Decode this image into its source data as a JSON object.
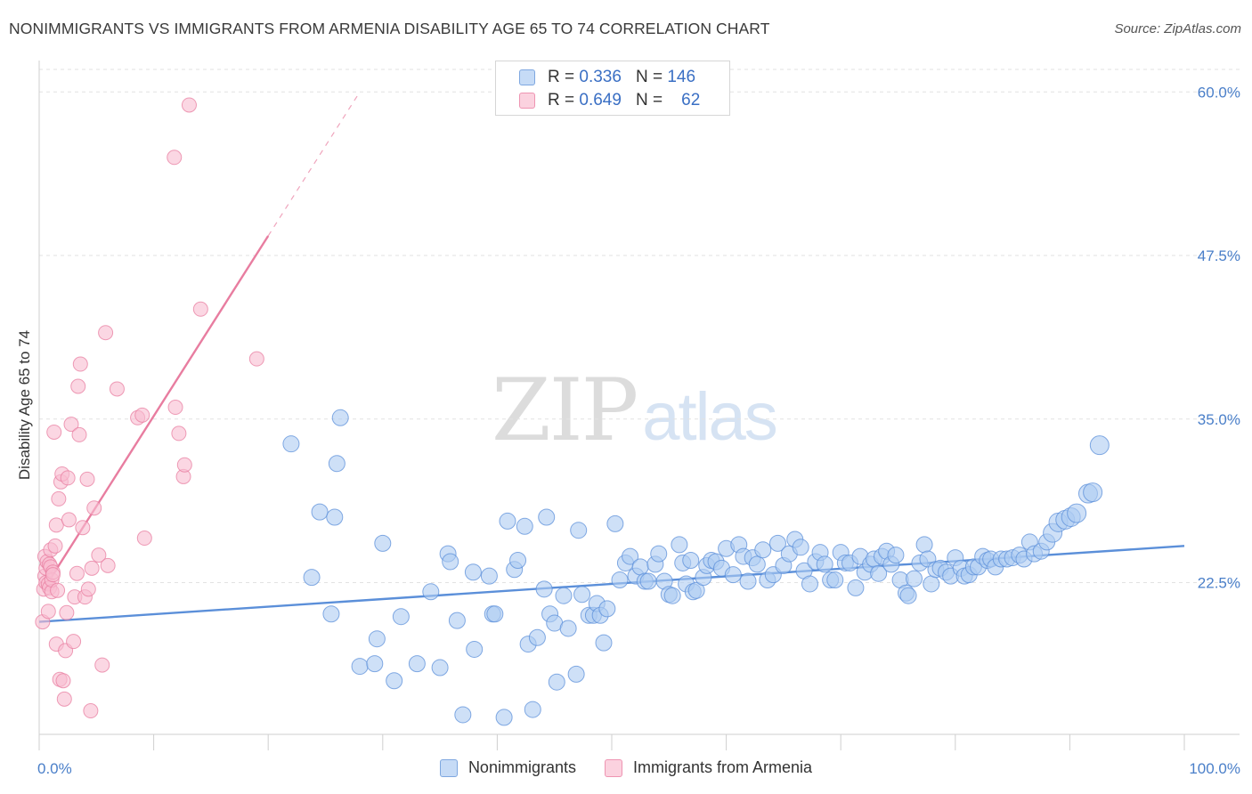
{
  "header": {
    "title": "NONIMMIGRANTS VS IMMIGRANTS FROM ARMENIA DISABILITY AGE 65 TO 74 CORRELATION CHART",
    "source": "Source: ZipAtlas.com"
  },
  "watermark": {
    "zip": "ZIP",
    "atlas": "atlas"
  },
  "legend_top": {
    "rows": [
      {
        "r_label": "R =",
        "r_value": "0.336",
        "n_label": "N =",
        "n_value": "146",
        "color": "#aecbf2"
      },
      {
        "r_label": "R =",
        "r_value": "0.649",
        "n_label": "N =",
        "n_value": "62",
        "color": "#f8bcd0"
      }
    ]
  },
  "legend_bottom": [
    {
      "label": "Nonimmigrants",
      "color": "#aecbf2"
    },
    {
      "label": "Immigrants from Armenia",
      "color": "#f8bcd0"
    }
  ],
  "chart_data": {
    "type": "scatter",
    "title": "NONIMMIGRANTS VS IMMIGRANTS FROM ARMENIA DISABILITY AGE 65 TO 74 CORRELATION CHART",
    "xlabel": "",
    "ylabel": "Disability Age 65 to 74",
    "xlim": [
      0,
      100
    ],
    "ylim": [
      10.9,
      62.4
    ],
    "y_ticks": [
      22.5,
      35.0,
      47.5,
      60.0
    ],
    "y_tick_labels": [
      "22.5%",
      "35.0%",
      "47.5%",
      "60.0%"
    ],
    "x_tick_labels": [
      "0.0%",
      "100.0%"
    ],
    "grid": true,
    "legend_position": "top-center",
    "series": [
      {
        "name": "Nonimmigrants",
        "color": "#5b8fd9",
        "fill": "#aecbf2",
        "r": 0.336,
        "n": 146,
        "trend": {
          "x": [
            0,
            100
          ],
          "y": [
            19.5,
            25.3
          ]
        },
        "points": [
          [
            22.0,
            33.1
          ],
          [
            26.3,
            35.1
          ],
          [
            26.0,
            31.6
          ],
          [
            24.5,
            27.9
          ],
          [
            25.8,
            27.5
          ],
          [
            23.8,
            22.9
          ],
          [
            25.5,
            20.1
          ],
          [
            30.0,
            25.5
          ],
          [
            29.5,
            18.2
          ],
          [
            28.0,
            16.1
          ],
          [
            29.3,
            16.3
          ],
          [
            31.0,
            15.0
          ],
          [
            31.6,
            19.9
          ],
          [
            33.0,
            16.3
          ],
          [
            34.2,
            21.8
          ],
          [
            35.0,
            16.0
          ],
          [
            35.7,
            24.7
          ],
          [
            35.9,
            24.1
          ],
          [
            36.5,
            19.6
          ],
          [
            37.0,
            12.4
          ],
          [
            38.0,
            17.4
          ],
          [
            37.9,
            23.3
          ],
          [
            39.3,
            23.0
          ],
          [
            39.6,
            20.1
          ],
          [
            39.8,
            20.1
          ],
          [
            40.6,
            12.2
          ],
          [
            40.9,
            27.2
          ],
          [
            41.5,
            23.5
          ],
          [
            41.8,
            24.2
          ],
          [
            42.4,
            26.8
          ],
          [
            42.7,
            17.8
          ],
          [
            43.1,
            12.8
          ],
          [
            43.5,
            18.3
          ],
          [
            44.3,
            27.5
          ],
          [
            44.1,
            22.0
          ],
          [
            44.6,
            20.1
          ],
          [
            45.0,
            19.4
          ],
          [
            45.2,
            14.9
          ],
          [
            45.8,
            21.5
          ],
          [
            46.2,
            19.0
          ],
          [
            46.9,
            15.5
          ],
          [
            47.1,
            26.5
          ],
          [
            47.4,
            21.6
          ],
          [
            48.0,
            20.0
          ],
          [
            48.4,
            20.0
          ],
          [
            48.7,
            20.9
          ],
          [
            49.0,
            20.0
          ],
          [
            49.3,
            17.9
          ],
          [
            49.6,
            20.5
          ],
          [
            50.3,
            27.0
          ],
          [
            50.7,
            22.7
          ],
          [
            51.2,
            24.0
          ],
          [
            51.6,
            24.5
          ],
          [
            52.1,
            23.0
          ],
          [
            52.5,
            23.7
          ],
          [
            52.9,
            22.6
          ],
          [
            53.2,
            22.6
          ],
          [
            53.8,
            23.9
          ],
          [
            54.1,
            24.7
          ],
          [
            54.6,
            22.6
          ],
          [
            55.0,
            21.6
          ],
          [
            55.3,
            21.5
          ],
          [
            55.9,
            25.4
          ],
          [
            56.2,
            24.0
          ],
          [
            56.5,
            22.4
          ],
          [
            56.9,
            24.2
          ],
          [
            57.1,
            21.8
          ],
          [
            57.4,
            21.9
          ],
          [
            58.0,
            22.9
          ],
          [
            58.3,
            23.8
          ],
          [
            58.7,
            24.2
          ],
          [
            59.1,
            24.1
          ],
          [
            59.6,
            23.6
          ],
          [
            60.0,
            25.1
          ],
          [
            60.6,
            23.1
          ],
          [
            61.1,
            25.4
          ],
          [
            61.5,
            24.5
          ],
          [
            61.9,
            22.6
          ],
          [
            62.3,
            24.4
          ],
          [
            62.7,
            23.9
          ],
          [
            63.2,
            25.0
          ],
          [
            63.6,
            22.7
          ],
          [
            64.1,
            23.1
          ],
          [
            64.5,
            25.5
          ],
          [
            65.0,
            23.8
          ],
          [
            65.5,
            24.7
          ],
          [
            66.0,
            25.8
          ],
          [
            66.5,
            25.2
          ],
          [
            66.8,
            23.4
          ],
          [
            67.3,
            22.4
          ],
          [
            67.8,
            24.1
          ],
          [
            68.2,
            24.8
          ],
          [
            68.6,
            23.9
          ],
          [
            69.1,
            22.7
          ],
          [
            69.5,
            22.7
          ],
          [
            70.0,
            24.8
          ],
          [
            70.4,
            24.0
          ],
          [
            70.8,
            24.0
          ],
          [
            71.3,
            22.1
          ],
          [
            71.7,
            24.5
          ],
          [
            72.1,
            23.3
          ],
          [
            72.6,
            23.9
          ],
          [
            72.9,
            24.3
          ],
          [
            73.3,
            23.2
          ],
          [
            73.6,
            24.5
          ],
          [
            74.0,
            24.9
          ],
          [
            74.4,
            23.9
          ],
          [
            74.8,
            24.6
          ],
          [
            75.2,
            22.7
          ],
          [
            75.7,
            21.7
          ],
          [
            75.9,
            21.5
          ],
          [
            76.4,
            22.8
          ],
          [
            76.9,
            24.0
          ],
          [
            77.3,
            25.4
          ],
          [
            77.6,
            24.3
          ],
          [
            77.9,
            22.4
          ],
          [
            78.3,
            23.5
          ],
          [
            78.7,
            23.6
          ],
          [
            79.2,
            23.3
          ],
          [
            79.6,
            23.0
          ],
          [
            80.0,
            24.4
          ],
          [
            80.5,
            23.6
          ],
          [
            80.8,
            23.0
          ],
          [
            81.2,
            23.1
          ],
          [
            81.6,
            23.7
          ],
          [
            82.0,
            23.7
          ],
          [
            82.4,
            24.5
          ],
          [
            82.8,
            24.2
          ],
          [
            83.1,
            24.3
          ],
          [
            83.5,
            23.7
          ],
          [
            84.0,
            24.3
          ],
          [
            84.5,
            24.3
          ],
          [
            85.0,
            24.4
          ],
          [
            85.6,
            24.6
          ],
          [
            86.0,
            24.3
          ],
          [
            86.5,
            25.6
          ],
          [
            86.9,
            24.7
          ],
          [
            87.5,
            24.9
          ],
          [
            88.0,
            25.6
          ],
          [
            88.5,
            26.3
          ],
          [
            89.0,
            27.1
          ],
          [
            89.6,
            27.3
          ],
          [
            90.1,
            27.5
          ],
          [
            90.6,
            27.8
          ],
          [
            91.6,
            29.3
          ],
          [
            92.0,
            29.4
          ],
          [
            92.6,
            33.0
          ]
        ]
      },
      {
        "name": "Immigrants from Armenia",
        "color": "#e87da0",
        "fill": "#f8bcd0",
        "r": 0.649,
        "n": 62,
        "trend": {
          "x": [
            0.4,
            20.0
          ],
          "y": [
            22.0,
            49.0
          ]
        },
        "trend_dashed": {
          "x": [
            20.0,
            28.0
          ],
          "y": [
            49.0,
            60.0
          ]
        },
        "points": [
          [
            0.3,
            19.5
          ],
          [
            0.4,
            22.0
          ],
          [
            0.5,
            23.0
          ],
          [
            0.5,
            24.5
          ],
          [
            0.6,
            22.5
          ],
          [
            0.6,
            23.6
          ],
          [
            0.7,
            24.1
          ],
          [
            0.8,
            20.3
          ],
          [
            0.8,
            22.4
          ],
          [
            0.9,
            23.9
          ],
          [
            0.9,
            22.1
          ],
          [
            1.0,
            23.7
          ],
          [
            1.0,
            25.0
          ],
          [
            1.1,
            21.8
          ],
          [
            1.1,
            22.7
          ],
          [
            1.2,
            23.3
          ],
          [
            1.3,
            34.0
          ],
          [
            1.4,
            25.3
          ],
          [
            1.5,
            26.9
          ],
          [
            1.5,
            17.8
          ],
          [
            1.6,
            21.9
          ],
          [
            1.7,
            28.9
          ],
          [
            1.8,
            15.1
          ],
          [
            1.9,
            30.2
          ],
          [
            2.0,
            30.8
          ],
          [
            2.1,
            15.0
          ],
          [
            2.2,
            13.6
          ],
          [
            2.3,
            17.3
          ],
          [
            2.4,
            20.2
          ],
          [
            2.5,
            30.5
          ],
          [
            2.6,
            27.3
          ],
          [
            2.8,
            34.6
          ],
          [
            3.0,
            18.0
          ],
          [
            3.1,
            21.4
          ],
          [
            3.3,
            23.2
          ],
          [
            3.4,
            37.5
          ],
          [
            3.5,
            33.8
          ],
          [
            3.6,
            39.2
          ],
          [
            3.8,
            26.7
          ],
          [
            4.0,
            21.4
          ],
          [
            4.2,
            30.4
          ],
          [
            4.3,
            22.0
          ],
          [
            4.5,
            12.7
          ],
          [
            4.6,
            23.6
          ],
          [
            4.8,
            28.2
          ],
          [
            5.2,
            24.6
          ],
          [
            5.5,
            16.2
          ],
          [
            5.8,
            41.6
          ],
          [
            6.0,
            23.8
          ],
          [
            6.8,
            37.3
          ],
          [
            8.6,
            35.1
          ],
          [
            9.0,
            35.3
          ],
          [
            9.2,
            25.9
          ],
          [
            11.8,
            55.0
          ],
          [
            11.9,
            35.9
          ],
          [
            12.2,
            33.9
          ],
          [
            12.6,
            30.6
          ],
          [
            12.7,
            31.5
          ],
          [
            13.1,
            59.0
          ],
          [
            14.1,
            43.4
          ],
          [
            19.0,
            39.6
          ],
          [
            1.2,
            23.1
          ]
        ]
      }
    ]
  }
}
